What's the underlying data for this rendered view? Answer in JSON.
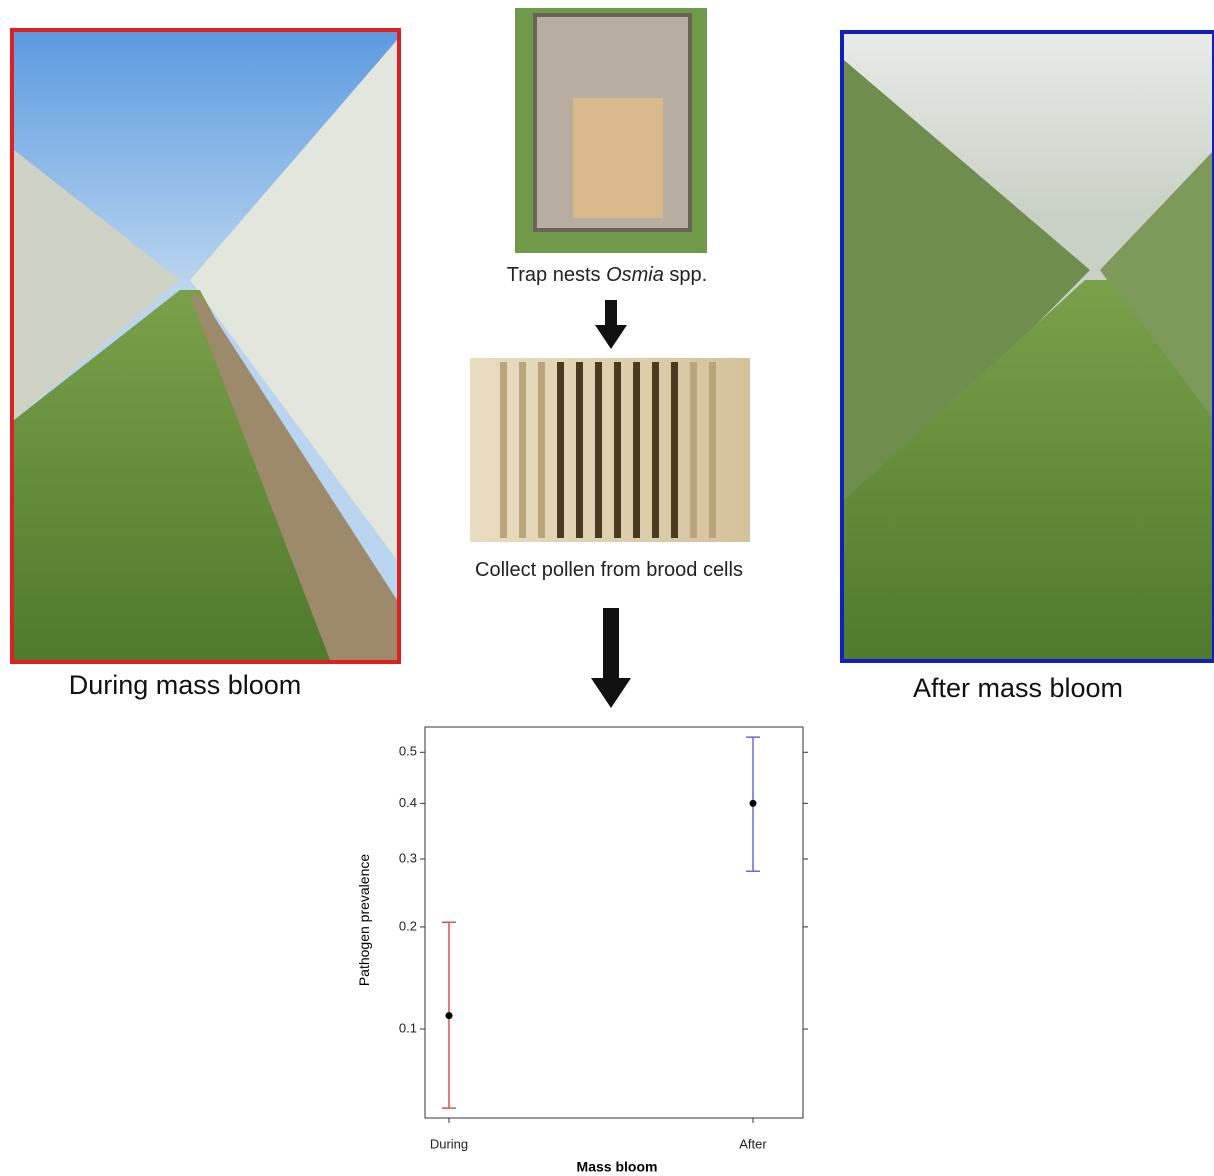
{
  "labels": {
    "left_caption": "During mass bloom",
    "right_caption": "After mass bloom",
    "trap_text": "Trap nests ",
    "trap_genus": "Osmia",
    "trap_suffix": " spp.",
    "collect_text": "Collect pollen from brood cells"
  },
  "chart_data": {
    "type": "errorbar",
    "xlabel": "Mass bloom",
    "ylabel": "Pathogen prevalence",
    "categories": [
      "During",
      "After"
    ],
    "values": [
      0.11,
      0.4
    ],
    "lower": [
      0.056,
      0.28
    ],
    "upper": [
      0.206,
      0.53
    ],
    "colors": [
      "#d9534f",
      "#6b6bd6"
    ],
    "point_color": "#000000",
    "yscale": "logit",
    "ylim": [
      0.052,
      0.55
    ],
    "yticks": [
      0.1,
      0.2,
      0.3,
      0.4,
      0.5
    ]
  }
}
